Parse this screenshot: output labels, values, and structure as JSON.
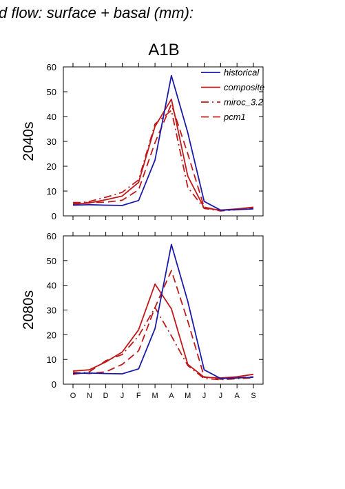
{
  "figure": {
    "title": "d flow: surface + basal (mm):",
    "subtitle": "A1B"
  },
  "chart_data": [
    {
      "type": "line",
      "panel_label": "2040s",
      "categories": [
        "O",
        "N",
        "D",
        "J",
        "F",
        "M",
        "A",
        "M",
        "J",
        "J",
        "A",
        "S"
      ],
      "ylim": [
        0,
        60
      ],
      "yticks": [
        0,
        10,
        20,
        30,
        40,
        50,
        60
      ],
      "legend": "top-right",
      "series": [
        {
          "name": "historical",
          "color": "#1a1aa8",
          "dash": "solid",
          "values": [
            4.3,
            4.5,
            4.3,
            4.2,
            6.2,
            22.5,
            56.5,
            33.5,
            5.8,
            2.3,
            2.5,
            2.8
          ]
        },
        {
          "name": "composite",
          "color": "#c01818",
          "dash": "solid",
          "values": [
            4.6,
            5.2,
            6.5,
            8.0,
            13.5,
            36.0,
            47.0,
            16.0,
            3.2,
            2.3,
            2.8,
            3.5
          ]
        },
        {
          "name": "miroc_3.2",
          "color": "#c01818",
          "dash": "dashdot",
          "values": [
            4.8,
            5.8,
            7.5,
            9.5,
            14.5,
            37.0,
            42.5,
            11.5,
            3.0,
            2.0,
            2.5,
            3.0
          ]
        },
        {
          "name": "pcm1",
          "color": "#c01818",
          "dash": "dash",
          "values": [
            5.4,
            5.4,
            5.5,
            6.3,
            10.5,
            29.5,
            45.0,
            25.0,
            3.5,
            2.2,
            2.6,
            3.0
          ]
        }
      ]
    },
    {
      "type": "line",
      "panel_label": "2080s",
      "categories": [
        "O",
        "N",
        "D",
        "J",
        "F",
        "M",
        "A",
        "M",
        "J",
        "J",
        "A",
        "S"
      ],
      "ylim": [
        0,
        60
      ],
      "yticks": [
        0,
        10,
        20,
        30,
        40,
        50,
        60
      ],
      "series": [
        {
          "name": "historical",
          "color": "#1a1aa8",
          "dash": "solid",
          "values": [
            4.3,
            4.5,
            4.3,
            4.2,
            6.2,
            22.5,
            56.5,
            33.5,
            5.8,
            2.3,
            2.5,
            2.8
          ]
        },
        {
          "name": "composite",
          "color": "#c01818",
          "dash": "solid",
          "values": [
            5.3,
            5.8,
            9.0,
            13.0,
            22.0,
            40.5,
            30.5,
            8.0,
            2.8,
            2.5,
            3.0,
            4.0
          ]
        },
        {
          "name": "miroc_3.2",
          "color": "#c01818",
          "dash": "dashdot",
          "values": [
            4.0,
            5.0,
            9.5,
            12.0,
            19.5,
            31.0,
            19.5,
            7.5,
            2.3,
            1.8,
            2.2,
            2.6
          ]
        },
        {
          "name": "pcm1",
          "color": "#c01818",
          "dash": "dash",
          "values": [
            4.8,
            4.3,
            5.0,
            8.0,
            13.5,
            31.0,
            46.0,
            25.5,
            3.0,
            2.0,
            2.5,
            3.0
          ]
        }
      ]
    }
  ]
}
